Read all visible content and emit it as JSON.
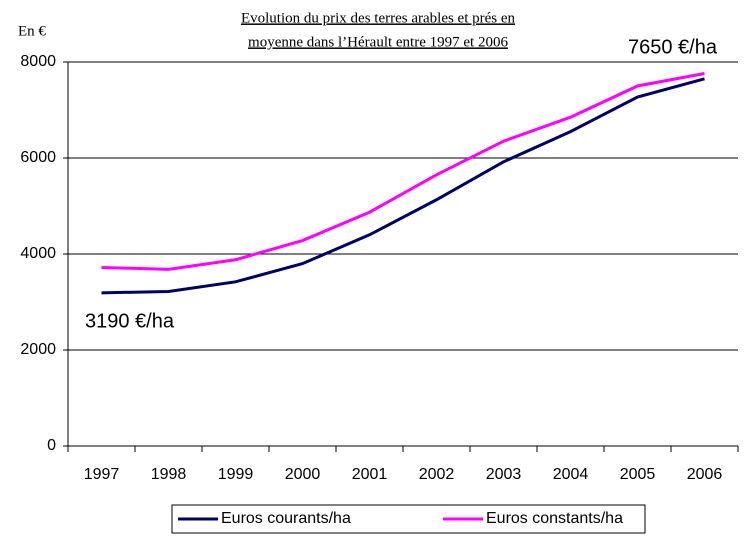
{
  "chart_data": {
    "type": "line",
    "title": [
      "Evolution du prix des terres arables et prés en",
      "moyenne dans l’Hérault entre 1997 et 2006"
    ],
    "y_label": "En  €",
    "annotations": [
      "3190 €/ha",
      "7650 €/ha"
    ],
    "categories": [
      "1997",
      "1998",
      "1999",
      "2000",
      "2001",
      "2002",
      "2003",
      "2004",
      "2005",
      "2006"
    ],
    "series": [
      {
        "name": "Euros courants/ha",
        "color": "#000066",
        "values": [
          3190,
          3220,
          3420,
          3800,
          4400,
          5130,
          5920,
          6550,
          7270,
          7650
        ]
      },
      {
        "name": "Euros constants/ha",
        "color": "#ff00ff",
        "values": [
          3720,
          3680,
          3880,
          4280,
          4870,
          5650,
          6350,
          6850,
          7500,
          7760
        ]
      }
    ],
    "ylim": [
      0,
      8000
    ],
    "yticks": [
      0,
      2000,
      4000,
      6000,
      8000
    ],
    "grid": true
  }
}
